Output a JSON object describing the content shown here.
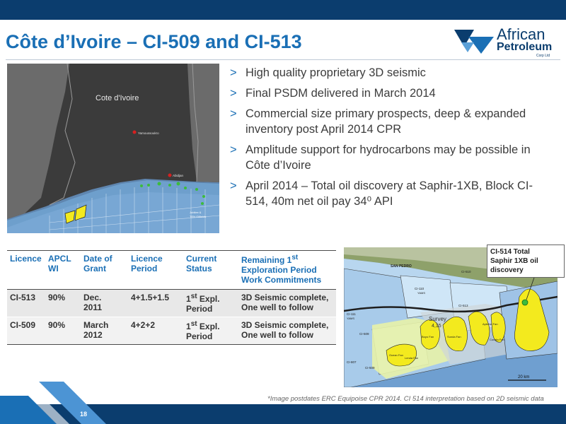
{
  "title": "Côte d’Ivoire – CI-509 and CI-513",
  "logo": {
    "line1": "African",
    "line2": "Petroleum",
    "line3": "Corp Ltd"
  },
  "map1": {
    "country_label": "Cote d'Ivoire",
    "city1": "Yamoussoukro",
    "city2": "Abidjan",
    "legend1": "Jubilee &",
    "legend2": "TEN Oilfields"
  },
  "bullets": [
    "High quality proprietary 3D seismic",
    "Final PSDM delivered in March 2014",
    "Commercial size primary prospects, deep & expanded inventory post April 2014 CPR",
    "Amplitude support for hydrocarbons may be possible in Côte d’Ivoire",
    "April 2014 – Total  oil discovery at Saphir-1XB, Block CI-514, 40m net oil pay 34⁰ API"
  ],
  "table": {
    "headers": {
      "licence": "Licence",
      "wi1": "APCL",
      "wi2": "WI",
      "grant1": "Date of",
      "grant2": "Grant",
      "period1": "Licence",
      "period2": "Period",
      "status1": "Current",
      "status2": "Status",
      "rem_pre": "Remaining 1",
      "rem_sup": "st",
      "rem_post": "Exploration Period Work Commitments"
    },
    "rows": [
      {
        "licence": "CI-513",
        "wi": "90%",
        "grant1": "Dec.",
        "grant2": "2011",
        "period": "4+1.5+1.5",
        "status_pre": "1",
        "status_sup": "st",
        "status_post": " Expl. Period",
        "commitments": "3D Seismic complete, One well to follow"
      },
      {
        "licence": "CI-509",
        "wi": "90%",
        "grant1": "March",
        "grant2": "2012",
        "period": "4+2+2",
        "status_pre": "1",
        "status_sup": "st",
        "status_post": " Expl. Period",
        "commitments": "3D Seismic complete, One well to follow"
      }
    ]
  },
  "map2": {
    "san_pedro": "SAN PEDRO",
    "ci510": "CI-510",
    "ci110": "CI-110",
    "yams1": "YAMS",
    "ci513": "CI-513",
    "ci111": "CI-111",
    "yams2": "YAMS",
    "ci509": "CI-509",
    "ci509b": "CI-509",
    "ci807": "CI-807",
    "survey": "Survey",
    "area": "4,15",
    "fan_boyo": "Boyo Fan",
    "fan_sunda": "Sunda Fan",
    "fan_lenda": "Lenda Fan",
    "fan_ocean": "Ocean Fan",
    "fan_aptenia": "Aptenia Fan",
    "fan_coralia": "Coralia Fan",
    "scale": "20 km"
  },
  "callout": {
    "line1": "CI-514 Total",
    "line2": "Saphir 1XB oil",
    "line3": "discovery"
  },
  "footnote": "*Image postdates ERC Equipoise CPR 2014. CI 514 interpretation based on 2D seismic data",
  "page_number": "18",
  "colors": {
    "brand_blue": "#1a6fb5",
    "navy": "#0b3d6e",
    "prospect_yellow": "#f3ea1e"
  }
}
